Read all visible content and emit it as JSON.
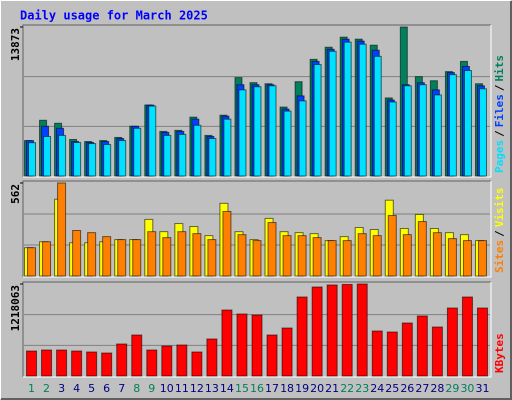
{
  "chart_data": [
    {
      "type": "bar",
      "title": "Daily usage for March 2025",
      "ylim": [
        0,
        13873
      ],
      "yticks": [
        13873
      ],
      "legend_separator": "/",
      "series": [
        {
          "name": "Hits",
          "color": "#00805c",
          "values": [
            3300,
            5190,
            4910,
            3400,
            3210,
            3300,
            3590,
            4630,
            6610,
            4150,
            4250,
            5480,
            3780,
            5660,
            9160,
            8690,
            8590,
            6420,
            8780,
            10860,
            11990,
            12930,
            12740,
            12180,
            7270,
            13873,
            9250,
            8870,
            9720,
            10670,
            8590
          ]
        },
        {
          "name": "Files",
          "color": "#0040ff",
          "values": [
            3300,
            4630,
            4440,
            3210,
            3120,
            3210,
            3490,
            4630,
            6610,
            4060,
            4150,
            5290,
            3680,
            5570,
            8500,
            8500,
            8500,
            6230,
            7460,
            10670,
            11800,
            12740,
            12560,
            11710,
            7080,
            8500,
            8690,
            8020,
            9630,
            10200,
            8400
          ]
        },
        {
          "name": "Pages",
          "color": "#00e0ff",
          "values": [
            3100,
            3680,
            3780,
            3120,
            3020,
            2930,
            3300,
            4440,
            6510,
            3780,
            3870,
            4720,
            3490,
            5290,
            8020,
            8310,
            8400,
            6040,
            6990,
            10380,
            11610,
            12460,
            12270,
            11140,
            6890,
            8400,
            8500,
            7550,
            9440,
            9820,
            8120
          ]
        }
      ]
    },
    {
      "type": "bar",
      "ylim": [
        0,
        562
      ],
      "yticks": [
        562
      ],
      "legend_separator": "/",
      "series": [
        {
          "name": "Visits",
          "color": "#ffff00",
          "values": [
            171,
            207,
            464,
            201,
            201,
            207,
            220,
            220,
            342,
            268,
            317,
            299,
            244,
            439,
            268,
            220,
            348,
            268,
            262,
            256,
            214,
            238,
            293,
            281,
            458,
            287,
            372,
            287,
            262,
            250,
            214
          ]
        },
        {
          "name": "Sites",
          "color": "#ff8000",
          "values": [
            171,
            207,
            562,
            275,
            262,
            238,
            220,
            220,
            268,
            232,
            268,
            256,
            220,
            390,
            250,
            214,
            323,
            244,
            244,
            232,
            214,
            214,
            256,
            244,
            366,
            250,
            329,
            262,
            226,
            214,
            214
          ]
        }
      ]
    },
    {
      "type": "bar",
      "ylim": [
        0,
        1218063
      ],
      "yticks": [
        1218063
      ],
      "categories": [
        "1",
        "2",
        "3",
        "4",
        "5",
        "6",
        "7",
        "8",
        "9",
        "10",
        "11",
        "12",
        "13",
        "14",
        "15",
        "16",
        "17",
        "18",
        "19",
        "20",
        "21",
        "22",
        "23",
        "24",
        "25",
        "26",
        "27",
        "28",
        "29",
        "30",
        "31"
      ],
      "category_colors": [
        "#00805c",
        "#00805c",
        "#000080",
        "#000080",
        "#000080",
        "#000080",
        "#000080",
        "#00805c",
        "#00805c",
        "#000080",
        "#000080",
        "#000080",
        "#000080",
        "#000080",
        "#00805c",
        "#00805c",
        "#000080",
        "#000080",
        "#000080",
        "#000080",
        "#000080",
        "#00805c",
        "#00805c",
        "#000080",
        "#000080",
        "#000080",
        "#000080",
        "#000080",
        "#00805c",
        "#00805c",
        "#000080"
      ],
      "series": [
        {
          "name": "KBytes",
          "color": "#ff0000",
          "values": [
            331000,
            344200,
            344200,
            331000,
            317800,
            304500,
            423700,
            542800,
            344200,
            397200,
            410400,
            317800,
            489900,
            873800,
            820900,
            807600,
            542800,
            635500,
            1046000,
            1178400,
            1205000,
            1212000,
            1218063,
            595800,
            582600,
            701700,
            794400,
            648800,
            900300,
            1046000,
            900300
          ]
        }
      ]
    }
  ]
}
